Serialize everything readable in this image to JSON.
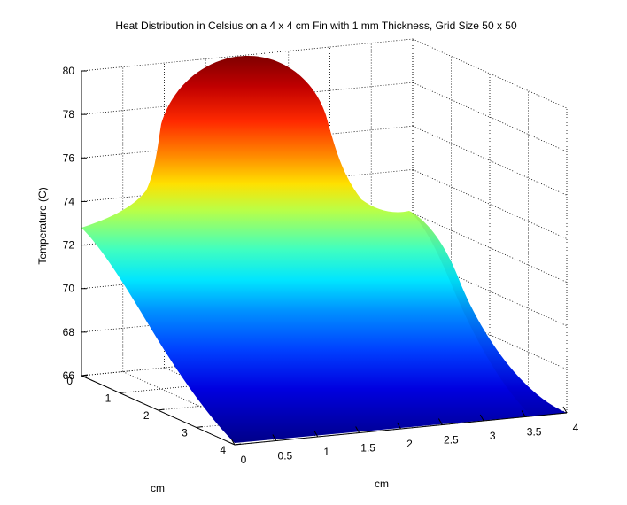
{
  "chart_data": {
    "type": "surface",
    "title": "Heat Distribution in Celsius on a 4 x 4 cm Fin with 1 mm Thickness, Grid Size 50 x 50",
    "xlabel": "cm",
    "ylabel": "cm",
    "zlabel": "Temperature (C)",
    "x_ticks": [
      "0",
      "0.5",
      "1",
      "1.5",
      "2",
      "2.5",
      "3",
      "3.5",
      "4"
    ],
    "y_ticks": [
      "0",
      "1",
      "2",
      "3",
      "4"
    ],
    "z_ticks": [
      "66",
      "68",
      "70",
      "72",
      "74",
      "76",
      "78",
      "80"
    ],
    "xlim": [
      0,
      4
    ],
    "ylim": [
      0,
      4
    ],
    "zlim": [
      66,
      80
    ],
    "grid": true,
    "colormap": "jet",
    "surface_profile": {
      "description_values_temperature_along_y_at_x_edges": true,
      "y": [
        0,
        0.5,
        1,
        1.5,
        2,
        2.5,
        3,
        3.5,
        4
      ],
      "temp_at_x0": [
        72.9,
        72.0,
        70.5,
        69.2,
        68.2,
        67.4,
        66.8,
        66.4,
        66.1
      ],
      "temp_at_x4": [
        73.0,
        72.3,
        71.0,
        69.6,
        68.4,
        67.5,
        66.9,
        66.4,
        66.1
      ],
      "peak": {
        "x": 2,
        "y": 0,
        "temp": 80.7
      }
    }
  }
}
